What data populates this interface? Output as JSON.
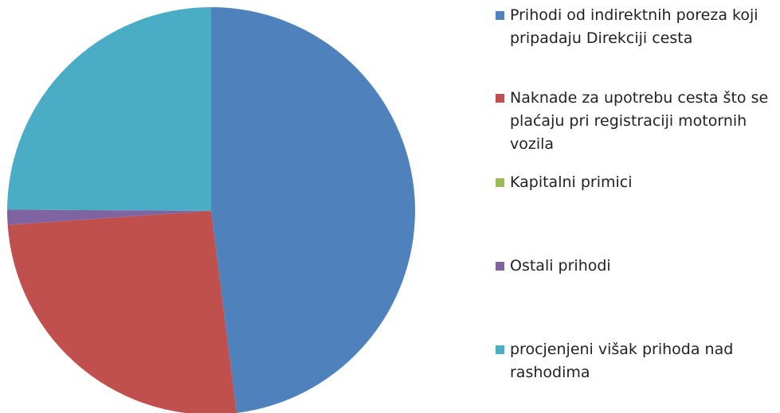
{
  "chart_data": {
    "type": "pie",
    "categories": [
      "Prihodi od indirektnih poreza koji pripadaju Direkciji cesta",
      "Naknade za upotrebu cesta što se plaćaju pri registraciji motornih vozila",
      "Kapitalni primici",
      "Ostali prihodi",
      "procjenjeni višak prihoda nad rashodima"
    ],
    "values": [
      48,
      25.9,
      0,
      1.2,
      24.9
    ],
    "colors": [
      "#4f81bd",
      "#c0504d",
      "#9bbb59",
      "#8064a2",
      "#4bacc6"
    ],
    "legend": "right"
  }
}
